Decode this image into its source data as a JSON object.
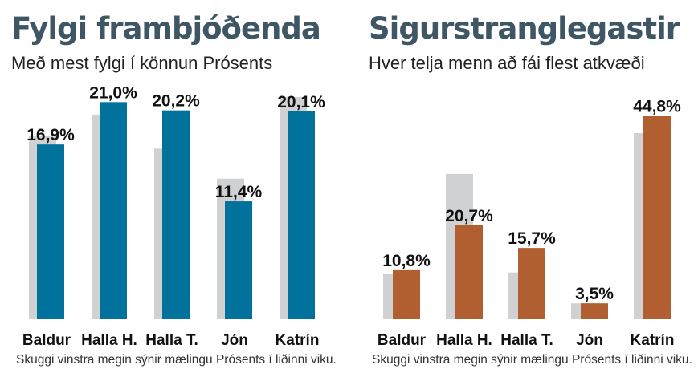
{
  "chart_data": [
    {
      "type": "bar",
      "title": "Fylgi frambjóðenda",
      "subtitle": "Með mest fylgi í könnun Prósents",
      "note": "Skuggi vinstra megin sýnir mælingu Prósents í liðinni viku.",
      "categories": [
        "Baldur",
        "Halla H.",
        "Halla T.",
        "Jón",
        "Katrín"
      ],
      "value_labels": [
        "16,9%",
        "21,0%",
        "20,2%",
        "11,4%",
        "20,1%"
      ],
      "series": [
        {
          "values": [
            16.9,
            21.0,
            20.2,
            11.4,
            20.1
          ]
        },
        {
          "values": [
            17.7,
            19.8,
            16.5,
            13.6,
            21.5
          ]
        }
      ],
      "ylim": [
        0,
        22.5
      ],
      "colors": {
        "current": "#00729b",
        "previous": "#cfd1d3"
      }
    },
    {
      "type": "bar",
      "title": "Sigurstranglegastir",
      "subtitle": "Hver telja menn að fái flest atkvæði",
      "note": "Skuggi vinstra megin sýnir mælingu Prósents í liðinni viku.",
      "categories": [
        "Baldur",
        "Halla H.",
        "Halla T.",
        "Jón",
        "Katrín"
      ],
      "value_labels": [
        "10,8%",
        "20,7%",
        "15,7%",
        "3,5%",
        "44,8%"
      ],
      "series": [
        {
          "values": [
            10.8,
            20.7,
            15.7,
            3.5,
            44.8
          ]
        },
        {
          "values": [
            9.9,
            32.0,
            10.3,
            3.5,
            41.0
          ]
        }
      ],
      "ylim": [
        0,
        50
      ],
      "colors": {
        "current": "#b15e30",
        "previous": "#cfd1d3"
      }
    }
  ]
}
